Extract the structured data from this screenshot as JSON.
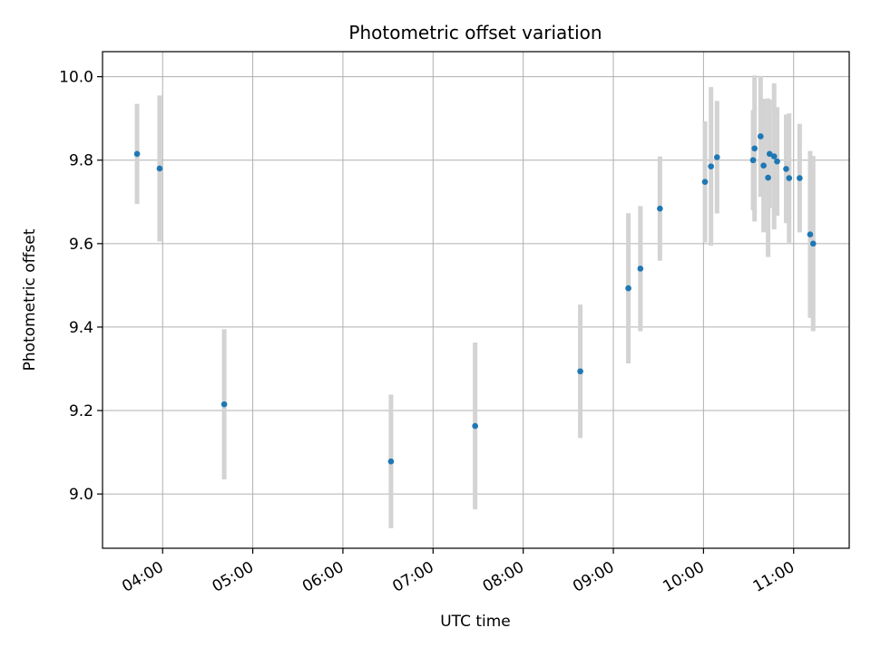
{
  "chart_data": {
    "type": "scatter",
    "title": "Photometric offset variation",
    "xlabel": "UTC time",
    "ylabel": "Photometric offset",
    "x_tick_labels": [
      "04:00",
      "05:00",
      "06:00",
      "07:00",
      "08:00",
      "09:00",
      "10:00",
      "11:00"
    ],
    "y_tick_labels": [
      "9.0",
      "9.2",
      "9.4",
      "9.6",
      "9.8",
      "10.0"
    ],
    "xlim": [
      "03:20",
      "11:37"
    ],
    "ylim": [
      8.87,
      10.06
    ],
    "grid": true,
    "series": [
      {
        "marker_color": "#1f77b4",
        "errorbar_color": "#d3d3d3",
        "points": [
          {
            "x": "03:43",
            "y": 9.815,
            "err": 0.12
          },
          {
            "x": "03:58",
            "y": 9.78,
            "err": 0.175
          },
          {
            "x": "04:41",
            "y": 9.215,
            "err": 0.18
          },
          {
            "x": "06:32",
            "y": 9.078,
            "err": 0.16
          },
          {
            "x": "07:28",
            "y": 9.163,
            "err": 0.2
          },
          {
            "x": "08:38",
            "y": 9.294,
            "err": 0.16
          },
          {
            "x": "09:10",
            "y": 9.493,
            "err": 0.18
          },
          {
            "x": "09:18",
            "y": 9.54,
            "err": 0.15
          },
          {
            "x": "09:31",
            "y": 9.684,
            "err": 0.125
          },
          {
            "x": "10:01",
            "y": 9.748,
            "err": 0.145
          },
          {
            "x": "10:05",
            "y": 9.785,
            "err": 0.19
          },
          {
            "x": "10:09",
            "y": 9.807,
            "err": 0.135
          },
          {
            "x": "10:33",
            "y": 9.8,
            "err": 0.12
          },
          {
            "x": "10:34",
            "y": 9.828,
            "err": 0.175
          },
          {
            "x": "10:38",
            "y": 9.857,
            "err": 0.145
          },
          {
            "x": "10:40",
            "y": 9.787,
            "err": 0.16
          },
          {
            "x": "10:43",
            "y": 9.758,
            "err": 0.19
          },
          {
            "x": "10:44",
            "y": 9.815,
            "err": 0.13
          },
          {
            "x": "10:47",
            "y": 9.809,
            "err": 0.175
          },
          {
            "x": "10:49",
            "y": 9.797,
            "err": 0.13
          },
          {
            "x": "10:55",
            "y": 9.779,
            "err": 0.13
          },
          {
            "x": "10:57",
            "y": 9.757,
            "err": 0.155
          },
          {
            "x": "11:04",
            "y": 9.757,
            "err": 0.13
          },
          {
            "x": "11:11",
            "y": 9.622,
            "err": 0.2
          },
          {
            "x": "11:13",
            "y": 9.6,
            "err": 0.21
          }
        ]
      }
    ]
  }
}
